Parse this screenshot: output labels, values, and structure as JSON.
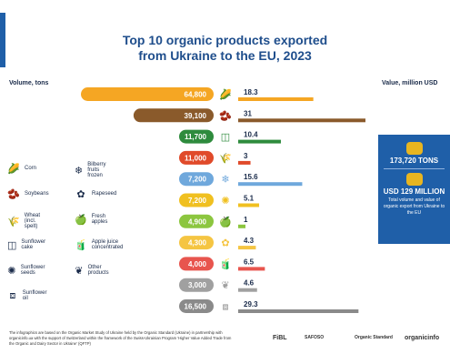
{
  "title_line1": "Top 10 organic products exported",
  "title_line2": "from Ukraine to the EU, 2023",
  "volume_label": "Volume, tons",
  "value_label": "Value, million USD",
  "legend": [
    {
      "name": "Corn",
      "icon": "corn-icon",
      "glyph": "🌽"
    },
    {
      "name": "Soybeans",
      "icon": "soybean-icon",
      "glyph": "🫘"
    },
    {
      "name": "Wheat (incl. spelt)",
      "icon": "wheat-icon",
      "glyph": "🌾"
    },
    {
      "name": "Sunflower cake",
      "icon": "sunflower-cake-icon",
      "glyph": "◫"
    },
    {
      "name": "Sunflower seeds",
      "icon": "sunflower-seeds-icon",
      "glyph": "✺"
    },
    {
      "name": "Sunflower oil",
      "icon": "sunflower-oil-icon",
      "glyph": "⧈"
    },
    {
      "name": "Bilberry fruits frozen",
      "icon": "bilberry-icon",
      "glyph": "❄"
    },
    {
      "name": "Rapeseed",
      "icon": "rapeseed-icon",
      "glyph": "✿"
    },
    {
      "name": "Fresh apples",
      "icon": "apple-icon",
      "glyph": "🍏"
    },
    {
      "name": "Apple juice concentrated",
      "icon": "apple-juice-icon",
      "glyph": "🧃"
    },
    {
      "name": "Other products",
      "icon": "other-products-icon",
      "glyph": "❦"
    }
  ],
  "chart_data": {
    "type": "bar",
    "title": "Top 10 organic products exported from Ukraine to the EU, 2023",
    "categories": [
      "Corn",
      "Soybeans",
      "Sunflower cake",
      "Wheat (incl. spelt)",
      "Bilberry fruits frozen",
      "Sunflower seeds",
      "Fresh apples",
      "Rapeseed",
      "Apple juice concentrated",
      "Other products",
      "Sunflower oil"
    ],
    "series": [
      {
        "name": "Volume, tons",
        "values": [
          64800,
          39100,
          11700,
          11000,
          7200,
          7200,
          4900,
          4300,
          4000,
          3000,
          16500
        ]
      },
      {
        "name": "Value, million USD",
        "values": [
          18.3,
          31,
          10.4,
          3,
          15.6,
          5.1,
          1,
          4.3,
          6.5,
          4.6,
          29.3
        ]
      }
    ],
    "volume_labels": [
      "64,800",
      "39,100",
      "11,700",
      "11,000",
      "7,200",
      "7,200",
      "4,900",
      "4,300",
      "4,000",
      "3,000",
      "16,500"
    ],
    "value_labels": [
      "18.3",
      "31",
      "10.4",
      "3",
      "15.6",
      "5.1",
      "1",
      "4.3",
      "6.5",
      "4.6",
      "29.3"
    ],
    "colors": [
      "#f5a623",
      "#8a5a2b",
      "#2e8b3d",
      "#e04a2a",
      "#6fa8dc",
      "#f0c020",
      "#8cc63f",
      "#f5c542",
      "#e8554e",
      "#a0a0a0",
      "#8a8a8a"
    ],
    "icons": [
      "corn-icon",
      "soybean-icon",
      "sunflower-cake-icon",
      "wheat-icon",
      "bilberry-icon",
      "sunflower-seeds-icon",
      "apple-icon",
      "rapeseed-icon",
      "apple-juice-icon",
      "other-products-icon",
      "sunflower-oil-icon"
    ],
    "glyphs": [
      "🌽",
      "🫘",
      "◫",
      "🌾",
      "❄",
      "✺",
      "🍏",
      "✿",
      "🧃",
      "❦",
      "⧈"
    ]
  },
  "summary": {
    "tons": "173,720 TONS",
    "usd": "USD 129 MILLION",
    "caption": "Total volume and value of organic export from Ukraine to the EU"
  },
  "footer": "The infographics are based on the Organic Market Study of Ukraine held by the Organic Standard (Ukraine) in partnership with organicinfo.ua with the support of Switzerland within the framework of the Swiss-Ukrainian Program 'Higher Value Added Trade from the Organic and Dairy Sector in Ukraine' (QFTP)",
  "logos": [
    "FiBL",
    "SAFOSO",
    "Organic Standard",
    "organicinfo"
  ]
}
